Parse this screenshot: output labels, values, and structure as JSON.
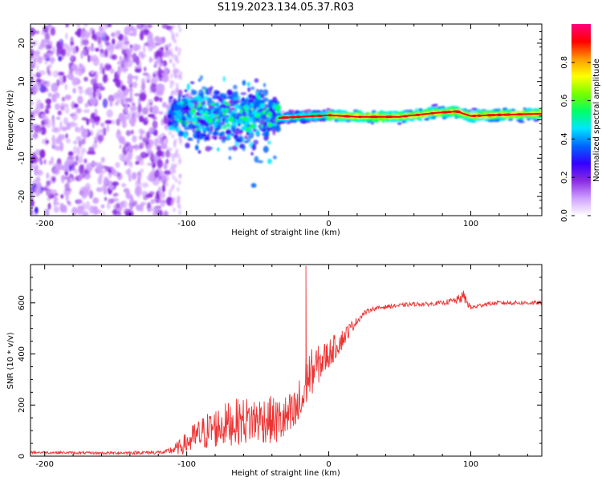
{
  "title": "S119.2023.134.05.37.R03",
  "chart_data": [
    {
      "type": "heatmap",
      "xlabel": "Height of straight line (km)",
      "ylabel": "Frequency (Hz)",
      "xlim": [
        -210,
        150
      ],
      "ylim": [
        -25,
        25
      ],
      "xticks": [
        -200,
        -100,
        0,
        100
      ],
      "yticks": [
        -20,
        -10,
        0,
        10,
        20
      ],
      "colorbar": {
        "label": "Normalized spectral amplitude",
        "range": [
          0,
          1
        ],
        "ticks": [
          0.0,
          0.2,
          0.4,
          0.6,
          0.8
        ],
        "tick_labels": [
          "0.0",
          "0.2",
          "0.4",
          "0.6",
          "0.8"
        ],
        "colors": [
          "#ffffff",
          "#cfa0ff",
          "#8a2be2",
          "#3300ff",
          "#0066ff",
          "#00e5ff",
          "#00ff66",
          "#77ff00",
          "#ffff00",
          "#ff9900",
          "#ff0000",
          "#ff007f"
        ]
      },
      "regions": [
        {
          "x": [
            -210,
            -112
          ],
          "freq": [
            -25,
            25
          ],
          "amplitude": 0.15,
          "pattern": "scattered noise"
        },
        {
          "x": [
            -112,
            -35
          ],
          "freq": [
            -15,
            10
          ],
          "amplitude": 0.35,
          "pattern": "broad turbulent"
        },
        {
          "x": [
            -35,
            0
          ],
          "freq": [
            -2,
            3
          ],
          "amplitude": 0.6,
          "pattern": "narrow tone"
        },
        {
          "x": [
            0,
            150
          ],
          "freq": [
            0,
            3
          ],
          "amplitude": 0.75,
          "pattern": "stable carrier"
        }
      ],
      "carrier_ridge": {
        "x": [
          -35,
          -20,
          0,
          20,
          50,
          75,
          90,
          100,
          120,
          150
        ],
        "freq": [
          0.5,
          0.8,
          1.2,
          0.8,
          0.8,
          1.8,
          2.2,
          1.0,
          1.3,
          1.6
        ]
      }
    },
    {
      "type": "line",
      "xlabel": "Height of straight line (km)",
      "ylabel": "SNR (10 * v/v)",
      "xlim": [
        -210,
        150
      ],
      "ylim": [
        0,
        750
      ],
      "xticks": [
        -200,
        -100,
        0,
        100
      ],
      "yticks": [
        0,
        200,
        400,
        600
      ],
      "color": "#ee3333",
      "series": [
        {
          "x": [
            -210,
            -160,
            -115,
            -105,
            -95,
            -85,
            -75,
            -65,
            -55,
            -45,
            -35,
            -25,
            -18,
            -16,
            -12,
            -5,
            0,
            5,
            10,
            15,
            20,
            25,
            30,
            40,
            50,
            60,
            70,
            80,
            90,
            95,
            100,
            110,
            120,
            130,
            140,
            150
          ],
          "y": [
            15,
            12,
            15,
            35,
            70,
            100,
            120,
            135,
            140,
            145,
            135,
            155,
            220,
            300,
            330,
            370,
            400,
            430,
            460,
            500,
            530,
            560,
            575,
            585,
            590,
            595,
            595,
            600,
            610,
            625,
            580,
            595,
            600,
            600,
            600,
            600
          ],
          "noise": [
            5,
            5,
            8,
            30,
            60,
            75,
            85,
            90,
            95,
            95,
            95,
            100,
            120,
            110,
            90,
            70,
            60,
            50,
            40,
            25,
            15,
            10,
            8,
            8,
            8,
            8,
            8,
            8,
            15,
            25,
            10,
            8,
            8,
            8,
            8,
            8
          ]
        }
      ],
      "spike": {
        "x": -16,
        "y": 745
      }
    }
  ]
}
